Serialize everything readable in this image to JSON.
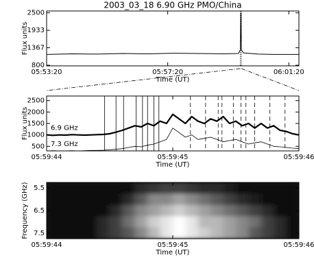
{
  "chart_data": [
    {
      "type": "line",
      "title": "2003_03_18   6.90 GHz   PMO/China",
      "ylabel": "Flux units",
      "xlabel": "Time (UT)",
      "x": [
        21200,
        21250,
        21300,
        21350,
        21400,
        21450,
        21500,
        21550,
        21580,
        21584,
        21585,
        21586,
        21590,
        21620,
        21650,
        21700
      ],
      "series": [
        {
          "color": "#000000",
          "width": 1,
          "values": [
            1150,
            1170,
            1160,
            1180,
            1170,
            1190,
            1180,
            1170,
            1180,
            1300,
            2500,
            1300,
            1200,
            1160,
            1150,
            1150
          ]
        }
      ],
      "xlim": [
        21200,
        21700
      ],
      "ylim": [
        780,
        2560
      ],
      "xticks": [
        {
          "value": 21200,
          "label": "05:53:20"
        },
        {
          "value": 21440,
          "label": "05:57:20"
        },
        {
          "value": 21680,
          "label": "06:01:20"
        }
      ],
      "yticks": [
        800,
        1367,
        1933,
        2500
      ],
      "zoom_window": [
        21584,
        21586
      ]
    },
    {
      "type": "line",
      "ylabel": "Flux units",
      "xlabel": "Time (UT)",
      "x": [
        21584.0,
        21584.05,
        21584.1,
        21584.15,
        21584.2,
        21584.25,
        21584.3,
        21584.35,
        21584.4,
        21584.45,
        21584.5,
        21584.55,
        21584.6,
        21584.65,
        21584.7,
        21584.75,
        21584.8,
        21584.85,
        21584.9,
        21584.95,
        21585.0,
        21585.05,
        21585.1,
        21585.15,
        21585.2,
        21585.25,
        21585.3,
        21585.35,
        21585.4,
        21585.45,
        21585.5,
        21585.55,
        21585.6,
        21585.65,
        21585.7,
        21585.75,
        21585.8,
        21585.85,
        21585.9,
        21585.95,
        21586.0
      ],
      "series": [
        {
          "name": "6.9 GHz",
          "color": "#000000",
          "width": 2.2,
          "values": [
            1000,
            980,
            1000,
            990,
            1010,
            1000,
            990,
            1000,
            1010,
            1020,
            1050,
            1120,
            1200,
            1300,
            1400,
            1350,
            1500,
            1400,
            1600,
            1500,
            1900,
            1700,
            1500,
            1800,
            1600,
            1500,
            1700,
            1600,
            1800,
            1500,
            1600,
            1400,
            1500,
            1300,
            1500,
            1300,
            1400,
            1200,
            1150,
            1050,
            1000
          ]
        },
        {
          "name": "7.3 GHz",
          "color": "#000000",
          "width": 0.8,
          "values": [
            300,
            310,
            300,
            300,
            310,
            300,
            310,
            320,
            320,
            330,
            350,
            370,
            400,
            450,
            500,
            480,
            550,
            600,
            700,
            800,
            1300,
            1100,
            900,
            1000,
            800,
            850,
            900,
            800,
            700,
            750,
            800,
            700,
            600,
            650,
            700,
            600,
            500,
            480,
            450,
            420,
            400
          ]
        }
      ],
      "xlim": [
        21584,
        21586
      ],
      "ylim": [
        300,
        2700
      ],
      "xticks": [
        {
          "value": 21584,
          "label": "05:59:44"
        },
        {
          "value": 21585,
          "label": "05:59:45"
        },
        {
          "value": 21586,
          "label": "05:59:46"
        }
      ],
      "yticks": [
        500,
        1000,
        1500,
        2000,
        2500
      ],
      "vlines_solid": [
        21584.46,
        21584.55,
        21584.61,
        21584.71,
        21584.76,
        21584.8,
        21584.85,
        21584.89
      ],
      "vlines_dashed": [
        21585.14,
        21585.26,
        21585.36,
        21585.39,
        21585.48,
        21585.54,
        21585.58,
        21585.65,
        21585.77,
        21585.89
      ]
    },
    {
      "type": "heatmap",
      "ylabel": "Frequency (GHz)",
      "xlabel": "Time (UT)",
      "x": [
        21584.05,
        21584.15,
        21584.25,
        21584.35,
        21584.45,
        21584.55,
        21584.65,
        21584.75,
        21584.85,
        21584.95,
        21585.05,
        21585.15,
        21585.25,
        21585.35,
        21585.45,
        21585.55,
        21585.65,
        21585.75,
        21585.85,
        21585.95
      ],
      "y": [
        5.5,
        6.0,
        6.5,
        7.0,
        7.5
      ],
      "z": [
        [
          0,
          0,
          0,
          0,
          0,
          0,
          0,
          0.1,
          0.15,
          0.2,
          0.2,
          0.15,
          0.1,
          0.1,
          0.05,
          0,
          0,
          0,
          0,
          0
        ],
        [
          0,
          0,
          0,
          0,
          0,
          0,
          0.1,
          0.3,
          0.5,
          0.5,
          0.6,
          0.5,
          0.4,
          0.3,
          0.2,
          0.1,
          0.05,
          0,
          0,
          0
        ],
        [
          0,
          0,
          0,
          0,
          0,
          0.1,
          0.3,
          0.5,
          0.6,
          0.7,
          0.8,
          0.7,
          0.6,
          0.5,
          0.4,
          0.3,
          0.2,
          0.1,
          0,
          0
        ],
        [
          0,
          0,
          0,
          0,
          0.1,
          0.2,
          0.4,
          0.6,
          0.8,
          0.9,
          1.0,
          0.9,
          0.7,
          0.7,
          0.6,
          0.5,
          0.4,
          0.2,
          0.1,
          0
        ],
        [
          0,
          0,
          0,
          0,
          0.1,
          0.2,
          0.3,
          0.5,
          0.7,
          0.9,
          1.0,
          0.9,
          0.8,
          0.7,
          0.6,
          0.5,
          0.3,
          0.2,
          0.1,
          0
        ]
      ],
      "xlim": [
        21584,
        21586
      ],
      "ylim": [
        7.75,
        5.25
      ],
      "xticks": [
        {
          "value": 21584,
          "label": "05:59:44"
        },
        {
          "value": 21585,
          "label": "05:59:45"
        },
        {
          "value": 21586,
          "label": "05:59:46"
        }
      ],
      "yticks": [
        5.5,
        6.5,
        7.5
      ]
    }
  ]
}
